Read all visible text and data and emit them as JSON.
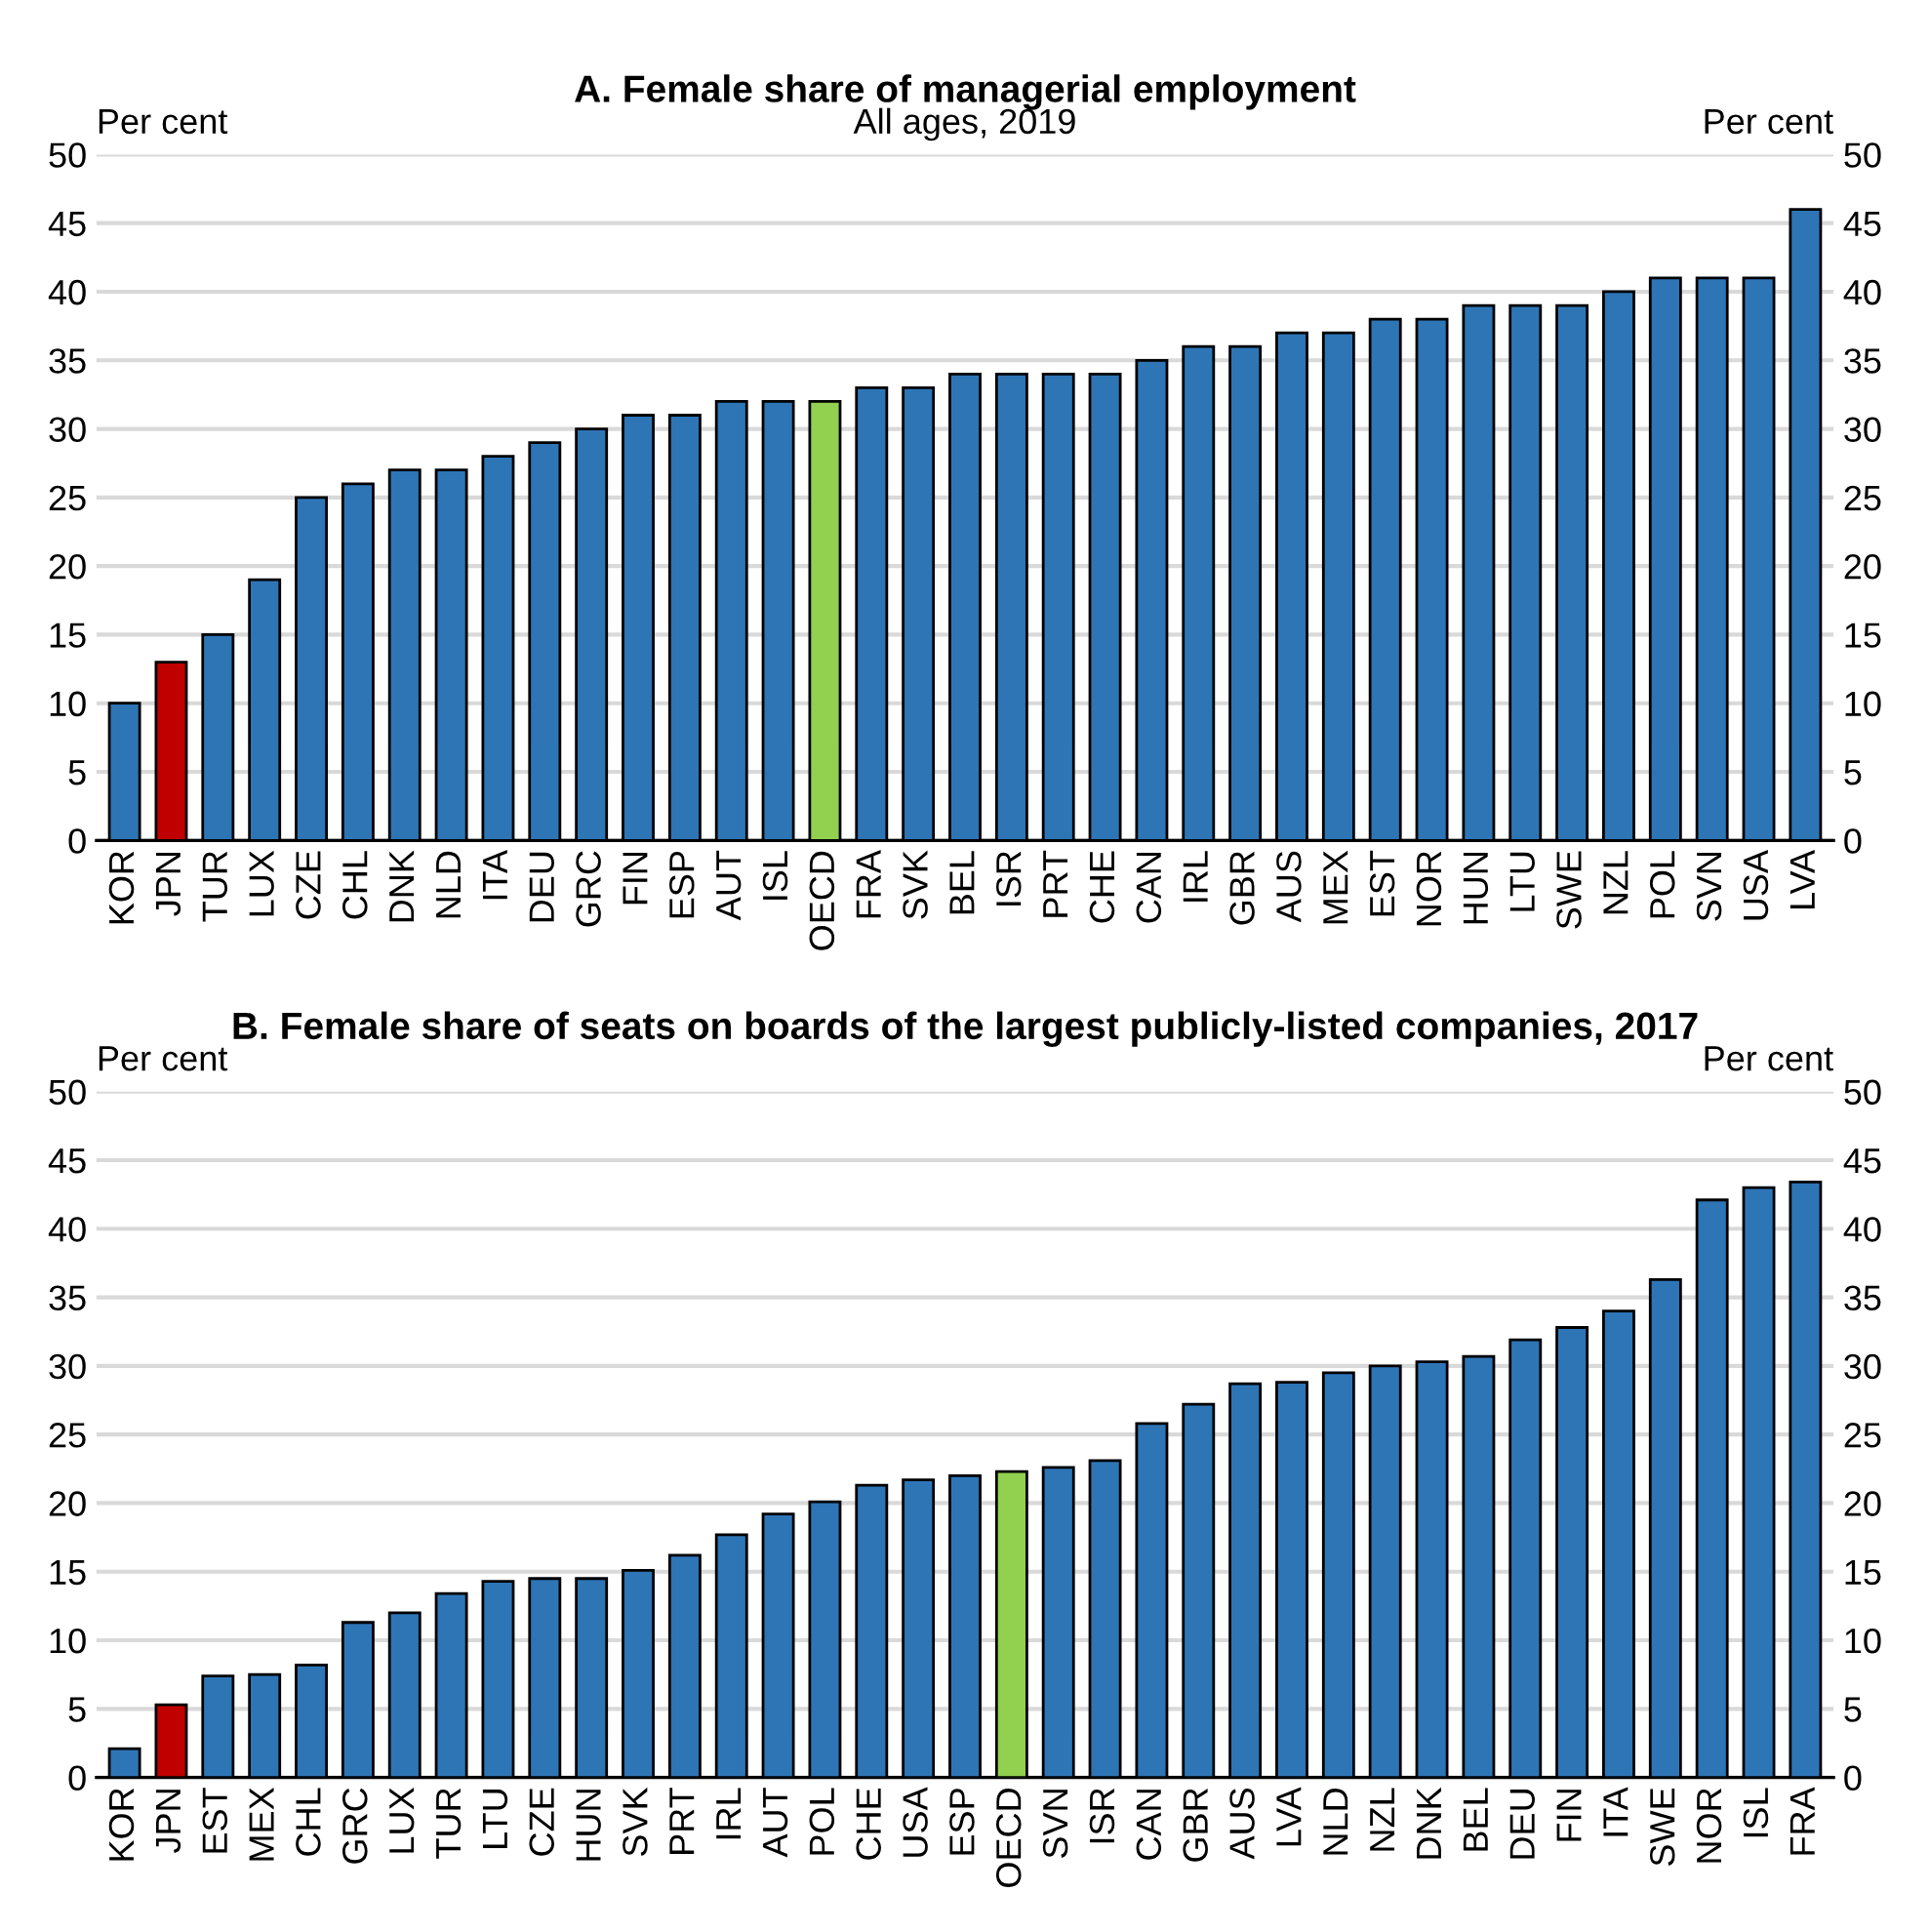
{
  "chart_data": [
    {
      "type": "bar",
      "title": "A. Female share of managerial employment",
      "subtitle": "All ages, 2019",
      "ylabel": "Per cent",
      "y2label": "Per cent",
      "categories": [
        "KOR",
        "JPN",
        "TUR",
        "LUX",
        "CZE",
        "CHL",
        "DNK",
        "NLD",
        "ITA",
        "DEU",
        "GRC",
        "FIN",
        "ESP",
        "AUT",
        "ISL",
        "OECD",
        "FRA",
        "SVK",
        "BEL",
        "ISR",
        "PRT",
        "CHE",
        "CAN",
        "IRL",
        "GBR",
        "AUS",
        "MEX",
        "EST",
        "NOR",
        "HUN",
        "LTU",
        "SWE",
        "NZL",
        "POL",
        "SVN",
        "USA",
        "LVA"
      ],
      "values": [
        10,
        13,
        15,
        19,
        25,
        26,
        27,
        27,
        28,
        29,
        30,
        31,
        31,
        32,
        32,
        32,
        33,
        33,
        34,
        34,
        34,
        34,
        35,
        36,
        36,
        37,
        37,
        38,
        38,
        39,
        39,
        39,
        40,
        41,
        41,
        41,
        46
      ],
      "colors": [
        "#2e75b6",
        "#c00000",
        "#2e75b6",
        "#2e75b6",
        "#2e75b6",
        "#2e75b6",
        "#2e75b6",
        "#2e75b6",
        "#2e75b6",
        "#2e75b6",
        "#2e75b6",
        "#2e75b6",
        "#2e75b6",
        "#2e75b6",
        "#2e75b6",
        "#92d050",
        "#2e75b6",
        "#2e75b6",
        "#2e75b6",
        "#2e75b6",
        "#2e75b6",
        "#2e75b6",
        "#2e75b6",
        "#2e75b6",
        "#2e75b6",
        "#2e75b6",
        "#2e75b6",
        "#2e75b6",
        "#2e75b6",
        "#2e75b6",
        "#2e75b6",
        "#2e75b6",
        "#2e75b6",
        "#2e75b6",
        "#2e75b6",
        "#2e75b6",
        "#2e75b6"
      ],
      "ylim": [
        0,
        50
      ],
      "yticks": [
        0,
        5,
        10,
        15,
        20,
        25,
        30,
        35,
        40,
        45,
        50
      ],
      "y2lim": [
        0,
        50
      ],
      "y2ticks": [
        0,
        5,
        10,
        15,
        20,
        25,
        30,
        35,
        40,
        45,
        50
      ],
      "grid": "y"
    },
    {
      "type": "bar",
      "title": "B. Female share of seats on boards of the largest publicly-listed companies, 2017",
      "ylabel": "Per cent",
      "y2label": "Per cent",
      "categories": [
        "KOR",
        "JPN",
        "EST",
        "MEX",
        "CHL",
        "GRC",
        "LUX",
        "TUR",
        "LTU",
        "CZE",
        "HUN",
        "SVK",
        "PRT",
        "IRL",
        "AUT",
        "POL",
        "CHE",
        "USA",
        "ESP",
        "OECD",
        "SVN",
        "ISR",
        "CAN",
        "GBR",
        "AUS",
        "LVA",
        "NLD",
        "NZL",
        "DNK",
        "BEL",
        "DEU",
        "FIN",
        "ITA",
        "SWE",
        "NOR",
        "ISL",
        "FRA"
      ],
      "values": [
        2.1,
        5.3,
        7.4,
        7.5,
        8.2,
        11.3,
        12.0,
        13.4,
        14.3,
        14.5,
        14.5,
        15.1,
        16.2,
        17.7,
        19.2,
        20.1,
        21.3,
        21.7,
        22.0,
        22.3,
        22.6,
        23.1,
        25.8,
        27.2,
        28.7,
        28.8,
        29.5,
        30.0,
        30.3,
        30.7,
        31.9,
        32.8,
        34.0,
        36.3,
        42.1,
        43.0,
        43.4
      ],
      "colors": [
        "#2e75b6",
        "#c00000",
        "#2e75b6",
        "#2e75b6",
        "#2e75b6",
        "#2e75b6",
        "#2e75b6",
        "#2e75b6",
        "#2e75b6",
        "#2e75b6",
        "#2e75b6",
        "#2e75b6",
        "#2e75b6",
        "#2e75b6",
        "#2e75b6",
        "#2e75b6",
        "#2e75b6",
        "#2e75b6",
        "#2e75b6",
        "#92d050",
        "#2e75b6",
        "#2e75b6",
        "#2e75b6",
        "#2e75b6",
        "#2e75b6",
        "#2e75b6",
        "#2e75b6",
        "#2e75b6",
        "#2e75b6",
        "#2e75b6",
        "#2e75b6",
        "#2e75b6",
        "#2e75b6",
        "#2e75b6",
        "#2e75b6",
        "#2e75b6",
        "#2e75b6"
      ],
      "ylim": [
        0,
        50
      ],
      "yticks": [
        0,
        5,
        10,
        15,
        20,
        25,
        30,
        35,
        40,
        45,
        50
      ],
      "y2lim": [
        0,
        50
      ],
      "y2ticks": [
        0,
        5,
        10,
        15,
        20,
        25,
        30,
        35,
        40,
        45,
        50
      ],
      "grid": "y"
    }
  ]
}
